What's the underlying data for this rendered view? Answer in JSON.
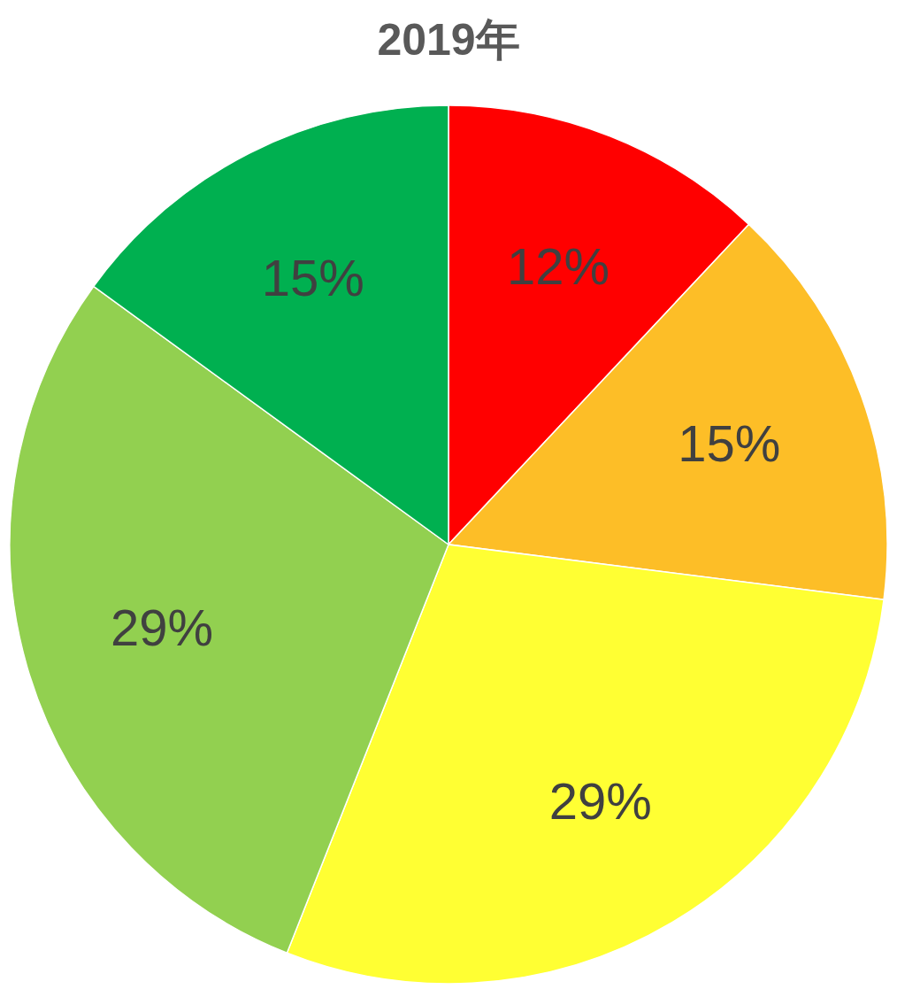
{
  "chart_data": {
    "type": "pie",
    "title": "2019年",
    "categories": [
      null,
      null,
      null,
      null,
      null
    ],
    "values": [
      12,
      15,
      29,
      29,
      15
    ],
    "colors": [
      "#ff0000",
      "#fdbe27",
      "#ffff33",
      "#92d050",
      "#00b050"
    ],
    "value_labels": [
      "12%",
      "15%",
      "29%",
      "29%",
      "15%"
    ]
  }
}
